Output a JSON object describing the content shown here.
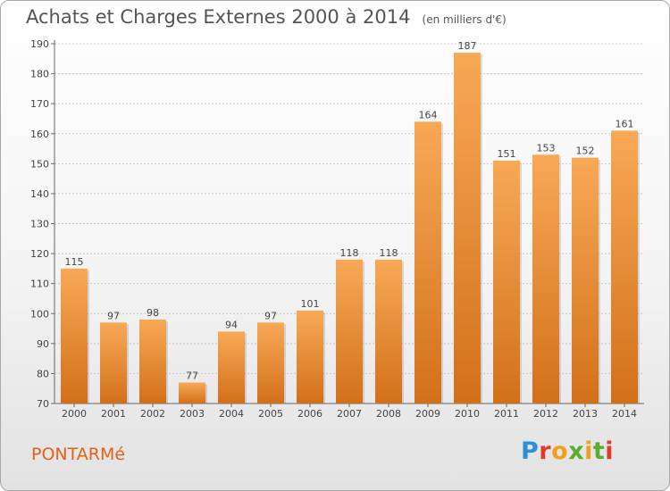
{
  "header": {
    "title": "Achats et Charges Externes 2000 à 2014",
    "unit": "(en milliers d'€)"
  },
  "footer": {
    "commune": "PONTARMé",
    "logo_letters": [
      "P",
      "r",
      "o",
      "x",
      "i",
      "t",
      "i"
    ]
  },
  "colors": {
    "bar_light": "#f8a956",
    "bar_dark": "#d2701a",
    "commune_text": "#e2621a",
    "grid": "#c8c8c8"
  },
  "chart_data": {
    "type": "bar",
    "title": "Achats et Charges Externes 2000 à 2014",
    "subtitle": "(en milliers d'€)",
    "categories": [
      "2000",
      "2001",
      "2002",
      "2003",
      "2004",
      "2005",
      "2006",
      "2007",
      "2008",
      "2009",
      "2010",
      "2011",
      "2012",
      "2013",
      "2014"
    ],
    "values": [
      115,
      97,
      98,
      77,
      94,
      97,
      101,
      118,
      118,
      164,
      187,
      151,
      153,
      152,
      161
    ],
    "data_labels": [
      "115",
      "97",
      "98",
      "77",
      "94",
      "97",
      "101",
      "118",
      "118",
      "164",
      "187",
      "151",
      "153",
      "152",
      "161"
    ],
    "ylim": [
      70,
      190
    ],
    "yticks": [
      70,
      80,
      90,
      100,
      110,
      120,
      130,
      140,
      150,
      160,
      170,
      180,
      190
    ],
    "grid": true,
    "xlabel": "",
    "ylabel": ""
  }
}
